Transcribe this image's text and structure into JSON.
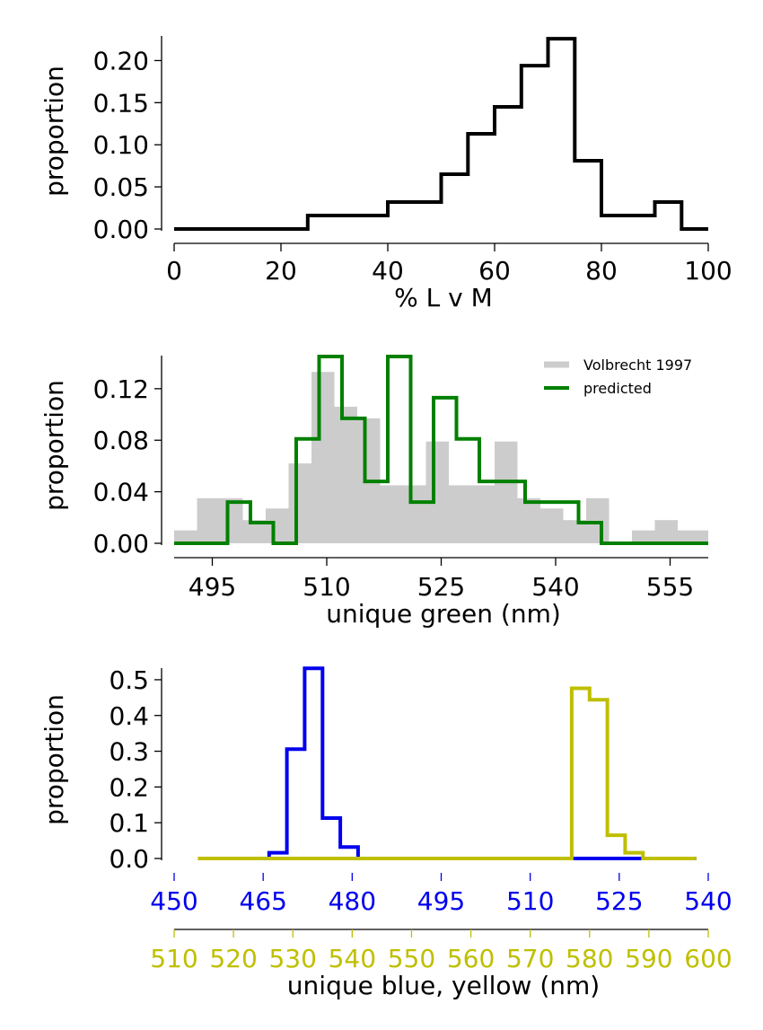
{
  "chart_data": [
    {
      "type": "line",
      "step": "histogram",
      "xlabel": "% L v M",
      "ylabel": "proportion",
      "xlim": [
        0,
        100
      ],
      "ylim": [
        0,
        0.225
      ],
      "xticks": [
        "0",
        "20",
        "40",
        "60",
        "80",
        "100"
      ],
      "yticks": [
        "0.00",
        "0.05",
        "0.10",
        "0.15",
        "0.20"
      ],
      "series": [
        {
          "color": "#000000",
          "bin_edges": [
            0,
            5,
            10,
            15,
            20,
            25,
            30,
            35,
            40,
            45,
            50,
            55,
            60,
            65,
            70,
            75,
            80,
            85,
            90,
            95,
            100
          ],
          "values": [
            0,
            0,
            0,
            0,
            0,
            0.016,
            0.016,
            0.016,
            0.032,
            0.032,
            0.065,
            0.113,
            0.145,
            0.194,
            0.226,
            0.081,
            0.016,
            0.016,
            0.032,
            0
          ]
        }
      ]
    },
    {
      "type": "line",
      "step": "histogram",
      "xlabel": "unique green (nm)",
      "ylabel": "proportion",
      "xlim": [
        490,
        560
      ],
      "ylim": [
        0,
        0.145
      ],
      "xticks": [
        "495",
        "510",
        "525",
        "540",
        "555"
      ],
      "yticks": [
        "0.00",
        "0.04",
        "0.08",
        "0.12"
      ],
      "legend_position": "top-right",
      "series": [
        {
          "name": "Volbrecht 1997",
          "kind": "filled",
          "color": "#cccccc",
          "bin_edges": [
            490,
            493,
            496,
            499,
            502,
            505,
            508,
            511,
            514,
            517,
            520,
            523,
            526,
            529,
            532,
            535,
            538,
            541,
            544,
            547,
            550,
            553,
            556,
            560
          ],
          "values": [
            0.01,
            0.035,
            0.035,
            0.018,
            0.027,
            0.062,
            0.133,
            0.106,
            0.097,
            0.045,
            0.045,
            0.079,
            0.045,
            0.045,
            0.079,
            0.035,
            0.027,
            0.018,
            0.035,
            0,
            0.01,
            0.018,
            0.01
          ]
        },
        {
          "name": "predicted",
          "kind": "step",
          "color": "#008000",
          "bin_edges": [
            490,
            497,
            500,
            503,
            506,
            509,
            512,
            515,
            518,
            521,
            524,
            527,
            530,
            533,
            536,
            539,
            543,
            546,
            549,
            560
          ],
          "values": [
            0,
            0.032,
            0.016,
            0,
            0.081,
            0.145,
            0.097,
            0.048,
            0.145,
            0.032,
            0.113,
            0.081,
            0.048,
            0.048,
            0.032,
            0.032,
            0.016,
            0,
            0
          ]
        }
      ]
    },
    {
      "type": "line",
      "step": "histogram",
      "xlabel": "unique blue, yellow (nm)",
      "ylabel": "proportion",
      "ylim": [
        0,
        0.53
      ],
      "yticks": [
        "0.0",
        "0.1",
        "0.2",
        "0.3",
        "0.4",
        "0.5"
      ],
      "axes": {
        "blue": {
          "color": "#0000ee",
          "xlim": [
            450,
            540
          ],
          "xticks": [
            "450",
            "465",
            "480",
            "495",
            "510",
            "525",
            "540"
          ]
        },
        "yellow": {
          "color": "#bfbf00",
          "xlim": [
            510,
            600
          ],
          "xticks": [
            "510",
            "520",
            "530",
            "540",
            "550",
            "560",
            "570",
            "580",
            "590",
            "600"
          ]
        }
      },
      "series": [
        {
          "color": "#0000ee",
          "axis": "blue",
          "bin_edges": [
            460,
            466,
            469,
            472,
            475,
            478,
            481,
            538
          ],
          "values": [
            0,
            0.016,
            0.306,
            0.532,
            0.113,
            0.032,
            0
          ]
        },
        {
          "color": "#bfbf00",
          "axis": "yellow",
          "bin_edges": [
            514,
            541,
            577,
            580,
            583,
            586,
            589,
            598
          ],
          "values": [
            0,
            0,
            0.476,
            0.444,
            0.065,
            0.016,
            0
          ]
        }
      ]
    }
  ]
}
